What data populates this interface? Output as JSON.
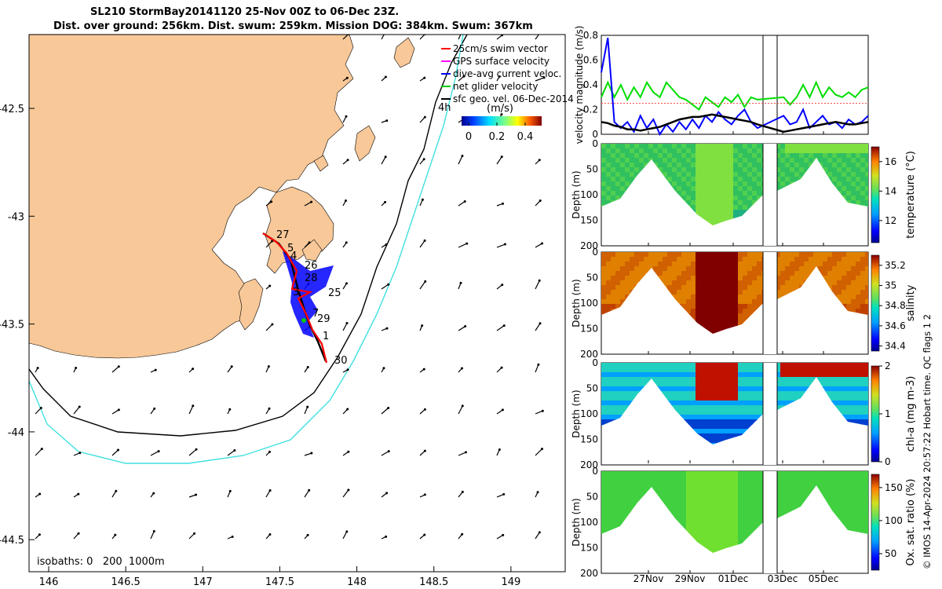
{
  "title": {
    "line1": "SL210 StormBay20141120 25-Nov 00Z to 06-Dec 23Z.",
    "line2": "Dist. over ground: 256km. Dist. swum: 259km. Mission DOG: 384km. Swum: 367km"
  },
  "map": {
    "x_ticks": [
      "146",
      "146.5",
      "147",
      "147.5",
      "148",
      "148.5",
      "149"
    ],
    "y_ticks": [
      "-42.5",
      "-43",
      "-43.5",
      "-44",
      "-44.5"
    ],
    "legend": [
      {
        "label": "25cm/s swim vector",
        "color": "#ff0000"
      },
      {
        "label": "GPS surface velocity",
        "color": "#ff00ff"
      },
      {
        "label": "dive-avg current veloc.",
        "color": "#0000ff"
      },
      {
        "label": "net glider velocity",
        "color": "#00cc00"
      },
      {
        "label": "sfc geo. vel. 06-Dec-2014",
        "color": "#000000"
      }
    ],
    "colorbar_label": "(m/s)",
    "colorbar_ticks": [
      "0",
      "0.2",
      "0.4"
    ],
    "isobaths_label": "isobaths: 0   200  1000m",
    "day_labels": [
      "27",
      "5",
      "4",
      "26",
      "28",
      "3",
      "25",
      "7",
      "29",
      "1",
      "30",
      "4h"
    ],
    "colors": {
      "land": "#f8c898",
      "iso200": "#000000",
      "iso1000": "#40e0e0"
    }
  },
  "chart_data": [
    {
      "type": "line",
      "ylabel": "velocity magnitude (m/s)",
      "ylim": [
        0,
        0.8
      ],
      "y_ticks": [
        "0",
        "0.2",
        "0.4",
        "0.6",
        "0.8"
      ],
      "series": [
        {
          "color": "#00dd00",
          "values": [
            0.3,
            0.42,
            0.3,
            0.4,
            0.28,
            0.38,
            0.3,
            0.42,
            0.34,
            0.3,
            0.42,
            0.36,
            0.3,
            0.28,
            0.24,
            0.2,
            0.3,
            0.26,
            0.22,
            0.3,
            0.26,
            0.32,
            0.22,
            0.3,
            0.28,
            0.3,
            0.26,
            0.36,
            0.3,
            0.24,
            0.3,
            0.4,
            0.3,
            0.42,
            0.3,
            0.38,
            0.32,
            0.3,
            0.34,
            0.3,
            0.36,
            0.38
          ]
        },
        {
          "color": "#ff4040",
          "values": [
            0.25,
            0.25,
            0.25,
            0.25,
            0.25,
            0.25,
            0.25,
            0.25,
            0.25,
            0.25,
            0.25,
            0.25,
            0.25,
            0.25,
            0.25,
            0.25,
            0.25,
            0.25,
            0.25,
            0.25,
            0.25,
            0.25,
            0.25,
            0.25,
            0.25,
            0.25,
            0.25,
            0.25,
            0.25,
            0.25,
            0.25,
            0.25,
            0.25,
            0.25,
            0.25,
            0.25,
            0.25,
            0.25,
            0.25,
            0.25,
            0.25,
            0.25
          ]
        },
        {
          "color": "#0000ff",
          "values": [
            0.5,
            0.78,
            0.1,
            0.05,
            0.1,
            0.02,
            0.15,
            0.05,
            0.12,
            0.0,
            0.08,
            0.02,
            0.1,
            0.04,
            0.12,
            0.05,
            0.15,
            0.1,
            0.18,
            0.12,
            0.08,
            0.15,
            0.2,
            0.1,
            0.05,
            0.15,
            0.1,
            0.2,
            0.15,
            0.08,
            0.1,
            0.2,
            0.05,
            0.1,
            0.15,
            0.08,
            0.1,
            0.05,
            0.12,
            0.08,
            0.1,
            0.15
          ]
        },
        {
          "color": "#000000",
          "values": [
            0.1,
            0.09,
            0.07,
            0.06,
            0.04,
            0.04,
            0.03,
            0.04,
            0.05,
            0.06,
            0.08,
            0.1,
            0.12,
            0.13,
            0.14,
            0.14,
            0.15,
            0.16,
            0.15,
            0.14,
            0.13,
            0.12,
            0.11,
            0.1,
            0.08,
            0.06,
            0.04,
            0.03,
            0.02,
            0.03,
            0.04,
            0.05,
            0.06,
            0.07,
            0.08,
            0.09,
            0.1,
            0.09,
            0.08,
            0.08,
            0.09,
            0.1
          ]
        }
      ]
    },
    {
      "type": "heatmap",
      "ylabel": "Depth (m)",
      "y_ticks": [
        "0",
        "50",
        "100",
        "150",
        "200"
      ],
      "colorbar_label": "temperature (°C)",
      "colorbar_ticks": [
        "12",
        "14",
        "16"
      ],
      "colorbar_range": [
        10.5,
        17
      ]
    },
    {
      "type": "heatmap",
      "ylabel": "Depth (m)",
      "y_ticks": [
        "0",
        "50",
        "100",
        "150",
        "200"
      ],
      "colorbar_label": "salinity",
      "colorbar_ticks": [
        "34.4",
        "34.6",
        "34.8",
        "35",
        "35.2"
      ],
      "colorbar_range": [
        34.35,
        35.3
      ]
    },
    {
      "type": "heatmap",
      "ylabel": "Depth (m)",
      "y_ticks": [
        "0",
        "50",
        "100",
        "150",
        "200"
      ],
      "colorbar_label": "chl-a (mg m-3)",
      "colorbar_ticks": [
        "0",
        "1",
        "2"
      ],
      "colorbar_range": [
        0,
        2
      ]
    },
    {
      "type": "heatmap",
      "ylabel": "Depth (m)",
      "y_ticks": [
        "0",
        "50",
        "100",
        "150",
        "200"
      ],
      "colorbar_label": "Ox. sat. ratio (%)",
      "colorbar_ticks": [
        "50",
        "100",
        "150"
      ],
      "colorbar_range": [
        25,
        170
      ]
    }
  ],
  "time_axis_ticks": [
    "27Nov",
    "29Nov",
    "01Dec",
    "03Dec",
    "05Dec"
  ],
  "footer": "© IMOS 14-Apr-2024 20:57:22 Hobart time. QC flags 1  2"
}
